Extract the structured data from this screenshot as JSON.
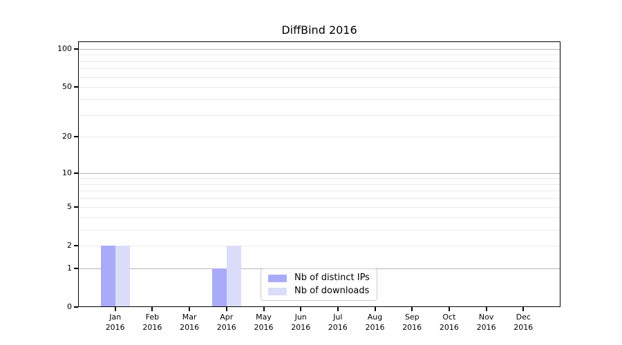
{
  "chart_data": {
    "type": "bar",
    "title": "DiffBind 2016",
    "categories": [
      "Jan",
      "Feb",
      "Mar",
      "Apr",
      "May",
      "Jun",
      "Jul",
      "Aug",
      "Sep",
      "Oct",
      "Nov",
      "Dec"
    ],
    "category_year": "2016",
    "series": [
      {
        "name": "Nb of distinct IPs",
        "color": "#a9abf8",
        "values": [
          2,
          0,
          0,
          1,
          0,
          0,
          0,
          0,
          0,
          0,
          0,
          0
        ]
      },
      {
        "name": "Nb of downloads",
        "color": "#dbdcfa",
        "values": [
          2,
          0,
          0,
          2,
          0,
          0,
          0,
          0,
          0,
          0,
          0,
          0
        ]
      }
    ],
    "y_axis": {
      "scale": "log1p",
      "tick_values": [
        0,
        1,
        2,
        5,
        10,
        20,
        50,
        100
      ],
      "max_value": 114.5,
      "major_gridlines": [
        1,
        10,
        100
      ],
      "minor_gridlines": [
        2,
        3,
        4,
        5,
        6,
        7,
        8,
        9,
        20,
        30,
        40,
        50,
        60,
        70,
        80,
        90
      ],
      "major_grid_color": "#b3b3b3",
      "minor_grid_color": "#e9e9e9"
    },
    "legend": {
      "position": "bottom-center"
    },
    "grid": true,
    "ylim": [
      0,
      114.5
    ]
  }
}
